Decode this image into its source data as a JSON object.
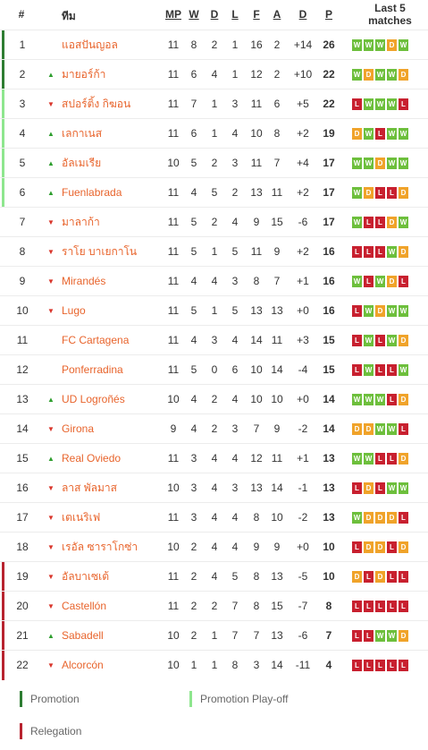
{
  "header": {
    "pos": "#",
    "team": "ทีม",
    "mp": "MP",
    "w": "W",
    "d": "D",
    "l": "L",
    "f": "F",
    "a": "A",
    "gd": "D",
    "p": "P",
    "last5_line1": "Last 5",
    "last5_line2": "matches"
  },
  "colors": {
    "promotion": "#2e7d32",
    "playoff": "#8ee68e",
    "relegation": "#b8232f",
    "win": "#6dbf3c",
    "draw": "#f0a32a",
    "loss": "#c8202f",
    "team_text": "#e8642c"
  },
  "rows": [
    {
      "pos": "1",
      "arrow": "",
      "team": "แอสปันญอล",
      "mp": "11",
      "w": "8",
      "d": "2",
      "l": "1",
      "f": "16",
      "a": "2",
      "gd": "+14",
      "p": "26",
      "form": [
        "W",
        "W",
        "W",
        "D",
        "W"
      ],
      "zone": "promotion"
    },
    {
      "pos": "2",
      "arrow": "up",
      "team": "มายอร์ก้า",
      "mp": "11",
      "w": "6",
      "d": "4",
      "l": "1",
      "f": "12",
      "a": "2",
      "gd": "+10",
      "p": "22",
      "form": [
        "W",
        "D",
        "W",
        "W",
        "D"
      ],
      "zone": "promotion"
    },
    {
      "pos": "3",
      "arrow": "down",
      "team": "สปอร์ติ้ง กิฆอน",
      "mp": "11",
      "w": "7",
      "d": "1",
      "l": "3",
      "f": "11",
      "a": "6",
      "gd": "+5",
      "p": "22",
      "form": [
        "L",
        "W",
        "W",
        "W",
        "L"
      ],
      "zone": "playoff"
    },
    {
      "pos": "4",
      "arrow": "up",
      "team": "เลกาเนส",
      "mp": "11",
      "w": "6",
      "d": "1",
      "l": "4",
      "f": "10",
      "a": "8",
      "gd": "+2",
      "p": "19",
      "form": [
        "D",
        "W",
        "L",
        "W",
        "W"
      ],
      "zone": "playoff"
    },
    {
      "pos": "5",
      "arrow": "up",
      "team": "อัลเมเรีย",
      "mp": "10",
      "w": "5",
      "d": "2",
      "l": "3",
      "f": "11",
      "a": "7",
      "gd": "+4",
      "p": "17",
      "form": [
        "W",
        "W",
        "D",
        "W",
        "W"
      ],
      "zone": "playoff"
    },
    {
      "pos": "6",
      "arrow": "up",
      "team": "Fuenlabrada",
      "mp": "11",
      "w": "4",
      "d": "5",
      "l": "2",
      "f": "13",
      "a": "11",
      "gd": "+2",
      "p": "17",
      "form": [
        "W",
        "D",
        "L",
        "L",
        "D"
      ],
      "zone": "playoff"
    },
    {
      "pos": "7",
      "arrow": "down",
      "team": "มาลาก้า",
      "mp": "11",
      "w": "5",
      "d": "2",
      "l": "4",
      "f": "9",
      "a": "15",
      "gd": "-6",
      "p": "17",
      "form": [
        "W",
        "L",
        "L",
        "D",
        "W"
      ],
      "zone": ""
    },
    {
      "pos": "8",
      "arrow": "down",
      "team": "ราโย บาเยกาโน",
      "mp": "11",
      "w": "5",
      "d": "1",
      "l": "5",
      "f": "11",
      "a": "9",
      "gd": "+2",
      "p": "16",
      "form": [
        "L",
        "L",
        "L",
        "W",
        "D"
      ],
      "zone": ""
    },
    {
      "pos": "9",
      "arrow": "down",
      "team": "Mirandés",
      "mp": "11",
      "w": "4",
      "d": "4",
      "l": "3",
      "f": "8",
      "a": "7",
      "gd": "+1",
      "p": "16",
      "form": [
        "W",
        "L",
        "W",
        "D",
        "L"
      ],
      "zone": ""
    },
    {
      "pos": "10",
      "arrow": "down",
      "team": "Lugo",
      "mp": "11",
      "w": "5",
      "d": "1",
      "l": "5",
      "f": "13",
      "a": "13",
      "gd": "+0",
      "p": "16",
      "form": [
        "L",
        "W",
        "D",
        "W",
        "W"
      ],
      "zone": ""
    },
    {
      "pos": "11",
      "arrow": "",
      "team": "FC Cartagena",
      "mp": "11",
      "w": "4",
      "d": "3",
      "l": "4",
      "f": "14",
      "a": "11",
      "gd": "+3",
      "p": "15",
      "form": [
        "L",
        "W",
        "L",
        "W",
        "D"
      ],
      "zone": ""
    },
    {
      "pos": "12",
      "arrow": "",
      "team": "Ponferradina",
      "mp": "11",
      "w": "5",
      "d": "0",
      "l": "6",
      "f": "10",
      "a": "14",
      "gd": "-4",
      "p": "15",
      "form": [
        "L",
        "W",
        "L",
        "L",
        "W"
      ],
      "zone": ""
    },
    {
      "pos": "13",
      "arrow": "up",
      "team": "UD Logroñés",
      "mp": "10",
      "w": "4",
      "d": "2",
      "l": "4",
      "f": "10",
      "a": "10",
      "gd": "+0",
      "p": "14",
      "form": [
        "W",
        "W",
        "W",
        "L",
        "D"
      ],
      "zone": ""
    },
    {
      "pos": "14",
      "arrow": "down",
      "team": "Girona",
      "mp": "9",
      "w": "4",
      "d": "2",
      "l": "3",
      "f": "7",
      "a": "9",
      "gd": "-2",
      "p": "14",
      "form": [
        "D",
        "D",
        "W",
        "W",
        "L"
      ],
      "zone": ""
    },
    {
      "pos": "15",
      "arrow": "up",
      "team": "Real Oviedo",
      "mp": "11",
      "w": "3",
      "d": "4",
      "l": "4",
      "f": "12",
      "a": "11",
      "gd": "+1",
      "p": "13",
      "form": [
        "W",
        "W",
        "L",
        "L",
        "D"
      ],
      "zone": ""
    },
    {
      "pos": "16",
      "arrow": "down",
      "team": "ลาส พัลมาส",
      "mp": "10",
      "w": "3",
      "d": "4",
      "l": "3",
      "f": "13",
      "a": "14",
      "gd": "-1",
      "p": "13",
      "form": [
        "L",
        "D",
        "L",
        "W",
        "W"
      ],
      "zone": ""
    },
    {
      "pos": "17",
      "arrow": "down",
      "team": "เตเนริเฟ",
      "mp": "11",
      "w": "3",
      "d": "4",
      "l": "4",
      "f": "8",
      "a": "10",
      "gd": "-2",
      "p": "13",
      "form": [
        "W",
        "D",
        "D",
        "D",
        "L"
      ],
      "zone": ""
    },
    {
      "pos": "18",
      "arrow": "down",
      "team": "เรอัล ซาราโกซ่า",
      "mp": "10",
      "w": "2",
      "d": "4",
      "l": "4",
      "f": "9",
      "a": "9",
      "gd": "+0",
      "p": "10",
      "form": [
        "L",
        "D",
        "D",
        "L",
        "D"
      ],
      "zone": ""
    },
    {
      "pos": "19",
      "arrow": "down",
      "team": "อัลบาเซเต้",
      "mp": "11",
      "w": "2",
      "d": "4",
      "l": "5",
      "f": "8",
      "a": "13",
      "gd": "-5",
      "p": "10",
      "form": [
        "D",
        "L",
        "D",
        "L",
        "L"
      ],
      "zone": "relegation"
    },
    {
      "pos": "20",
      "arrow": "down",
      "team": "Castellón",
      "mp": "11",
      "w": "2",
      "d": "2",
      "l": "7",
      "f": "8",
      "a": "15",
      "gd": "-7",
      "p": "8",
      "form": [
        "L",
        "L",
        "L",
        "L",
        "L"
      ],
      "zone": "relegation"
    },
    {
      "pos": "21",
      "arrow": "up",
      "team": "Sabadell",
      "mp": "10",
      "w": "2",
      "d": "1",
      "l": "7",
      "f": "7",
      "a": "13",
      "gd": "-6",
      "p": "7",
      "form": [
        "L",
        "L",
        "W",
        "W",
        "D"
      ],
      "zone": "relegation"
    },
    {
      "pos": "22",
      "arrow": "down",
      "team": "Alcorcón",
      "mp": "10",
      "w": "1",
      "d": "1",
      "l": "8",
      "f": "3",
      "a": "14",
      "gd": "-11",
      "p": "4",
      "form": [
        "L",
        "L",
        "L",
        "L",
        "L"
      ],
      "zone": "relegation"
    }
  ],
  "legend": {
    "promotion": "Promotion",
    "playoff": "Promotion Play-off",
    "relegation": "Relegation"
  }
}
